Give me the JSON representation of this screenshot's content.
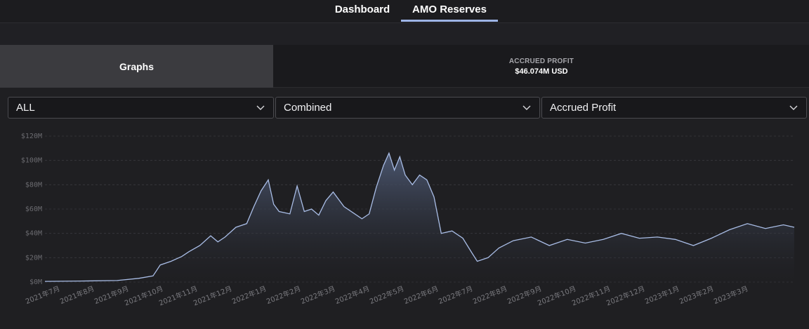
{
  "nav": {
    "tabs": [
      {
        "label": "Dashboard",
        "active": false
      },
      {
        "label": "AMO Reserves",
        "active": true
      }
    ]
  },
  "summary": {
    "graphs_label": "Graphs",
    "accrued_profit_label": "ACCRUED PROFIT",
    "accrued_profit_value": "$46.074M USD"
  },
  "filters": {
    "range": "ALL",
    "mode": "Combined",
    "metric": "Accrued Profit"
  },
  "colors": {
    "line": "#a9bde6",
    "fill_top": "#4e5a75",
    "grid": "#3a3a3f"
  },
  "chart_data": {
    "type": "area",
    "title": "",
    "xlabel": "",
    "ylabel": "",
    "ylim": [
      0,
      120
    ],
    "y_unit": "$M",
    "yticks": [
      0,
      20,
      40,
      60,
      80,
      100,
      120
    ],
    "ytick_labels": [
      "$0M",
      "$20M",
      "$40M",
      "$60M",
      "$80M",
      "$100M",
      "$120M"
    ],
    "grid": true,
    "categories": [
      "2021年7月",
      "2021年8月",
      "2021年9月",
      "2021年10月",
      "2021年11月",
      "2021年12月",
      "2022年1月",
      "2022年2月",
      "2022年3月",
      "2022年4月",
      "2022年5月",
      "2022年6月",
      "2022年7月",
      "2022年8月",
      "2022年9月",
      "2022年10月",
      "2022年11月",
      "2022年12月",
      "2023年1月",
      "2023年2月",
      "2023年3月"
    ],
    "series": [
      {
        "values": [
          {
            "x": 0.0,
            "y": 0.5
          },
          {
            "x": 1.0,
            "y": 0.8
          },
          {
            "x": 2.0,
            "y": 1.2
          },
          {
            "x": 2.6,
            "y": 3
          },
          {
            "x": 3.0,
            "y": 5
          },
          {
            "x": 3.2,
            "y": 14
          },
          {
            "x": 3.5,
            "y": 17
          },
          {
            "x": 3.8,
            "y": 21
          },
          {
            "x": 4.0,
            "y": 25
          },
          {
            "x": 4.3,
            "y": 30
          },
          {
            "x": 4.6,
            "y": 38
          },
          {
            "x": 4.8,
            "y": 33
          },
          {
            "x": 5.0,
            "y": 37
          },
          {
            "x": 5.3,
            "y": 45
          },
          {
            "x": 5.6,
            "y": 48
          },
          {
            "x": 5.8,
            "y": 62
          },
          {
            "x": 6.0,
            "y": 75
          },
          {
            "x": 6.2,
            "y": 84
          },
          {
            "x": 6.35,
            "y": 64
          },
          {
            "x": 6.5,
            "y": 58
          },
          {
            "x": 6.8,
            "y": 56
          },
          {
            "x": 7.0,
            "y": 79
          },
          {
            "x": 7.2,
            "y": 58
          },
          {
            "x": 7.4,
            "y": 60
          },
          {
            "x": 7.6,
            "y": 55
          },
          {
            "x": 7.8,
            "y": 67
          },
          {
            "x": 8.0,
            "y": 74
          },
          {
            "x": 8.3,
            "y": 62
          },
          {
            "x": 8.6,
            "y": 56
          },
          {
            "x": 8.8,
            "y": 52
          },
          {
            "x": 9.0,
            "y": 56
          },
          {
            "x": 9.2,
            "y": 78
          },
          {
            "x": 9.4,
            "y": 96
          },
          {
            "x": 9.55,
            "y": 106
          },
          {
            "x": 9.7,
            "y": 92
          },
          {
            "x": 9.85,
            "y": 103
          },
          {
            "x": 10.0,
            "y": 88
          },
          {
            "x": 10.2,
            "y": 80
          },
          {
            "x": 10.4,
            "y": 88
          },
          {
            "x": 10.6,
            "y": 84
          },
          {
            "x": 10.8,
            "y": 70
          },
          {
            "x": 11.0,
            "y": 40
          },
          {
            "x": 11.3,
            "y": 42
          },
          {
            "x": 11.6,
            "y": 36
          },
          {
            "x": 11.85,
            "y": 24
          },
          {
            "x": 12.0,
            "y": 17
          },
          {
            "x": 12.3,
            "y": 20
          },
          {
            "x": 12.6,
            "y": 28
          },
          {
            "x": 13.0,
            "y": 34
          },
          {
            "x": 13.5,
            "y": 37
          },
          {
            "x": 14.0,
            "y": 30
          },
          {
            "x": 14.5,
            "y": 35
          },
          {
            "x": 15.0,
            "y": 32
          },
          {
            "x": 15.5,
            "y": 35
          },
          {
            "x": 16.0,
            "y": 40
          },
          {
            "x": 16.5,
            "y": 36
          },
          {
            "x": 17.0,
            "y": 37
          },
          {
            "x": 17.5,
            "y": 35
          },
          {
            "x": 18.0,
            "y": 30
          },
          {
            "x": 18.5,
            "y": 36
          },
          {
            "x": 19.0,
            "y": 43
          },
          {
            "x": 19.5,
            "y": 48
          },
          {
            "x": 20.0,
            "y": 44
          },
          {
            "x": 20.5,
            "y": 47
          },
          {
            "x": 20.8,
            "y": 45
          }
        ]
      }
    ]
  }
}
